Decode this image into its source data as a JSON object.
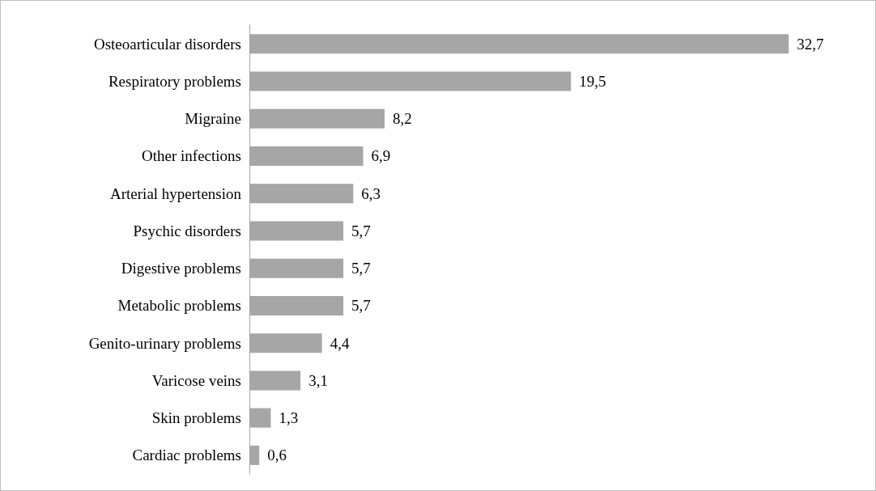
{
  "chart_data": {
    "type": "bar",
    "orientation": "horizontal",
    "categories": [
      "Osteoarticular disorders",
      "Respiratory problems",
      "Migraine",
      "Other infections",
      "Arterial hypertension",
      "Psychic disorders",
      "Digestive problems",
      "Metabolic problems",
      "Genito-urinary problems",
      "Varicose veins",
      "Skin problems",
      "Cardiac problems"
    ],
    "values": [
      32.7,
      19.5,
      8.2,
      6.9,
      6.3,
      5.7,
      5.7,
      5.7,
      4.4,
      3.1,
      1.3,
      0.6
    ],
    "value_labels": [
      "32,7",
      "19,5",
      "8,2",
      "6,9",
      "6,3",
      "5,7",
      "5,7",
      "5,7",
      "4,4",
      "3,1",
      "1,3",
      "0,6"
    ],
    "color": "#a6a6a6"
  }
}
